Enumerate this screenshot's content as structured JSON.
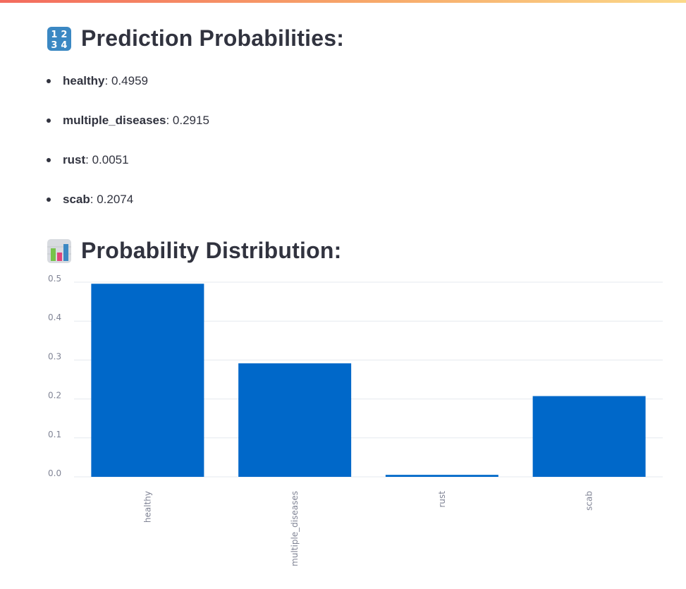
{
  "prediction_heading": {
    "emoji": "input-numbers-icon",
    "text": "Prediction Probabilities:"
  },
  "probabilities": [
    {
      "label": "healthy",
      "value": ": 0.4959"
    },
    {
      "label": "multiple_diseases",
      "value": ": 0.2915"
    },
    {
      "label": "rust",
      "value": ": 0.0051"
    },
    {
      "label": "scab",
      "value": ": 0.2074"
    }
  ],
  "distribution_heading": {
    "emoji": "bar-chart-icon",
    "text": "Probability Distribution:"
  },
  "colors": {
    "bar": "#0068c9",
    "accent_gradient": [
      "#f36b5e",
      "#fbd98a"
    ]
  },
  "chart_data": {
    "type": "bar",
    "categories": [
      "healthy",
      "multiple_diseases",
      "rust",
      "scab"
    ],
    "values": [
      0.4959,
      0.2915,
      0.0051,
      0.2074
    ],
    "ylim": [
      0,
      0.5
    ],
    "yticks": [
      "0.0",
      "0.1",
      "0.2",
      "0.3",
      "0.4",
      "0.5"
    ],
    "grid": true,
    "xlabel_rotation": "vertical",
    "bar_color": "#0068c9"
  }
}
